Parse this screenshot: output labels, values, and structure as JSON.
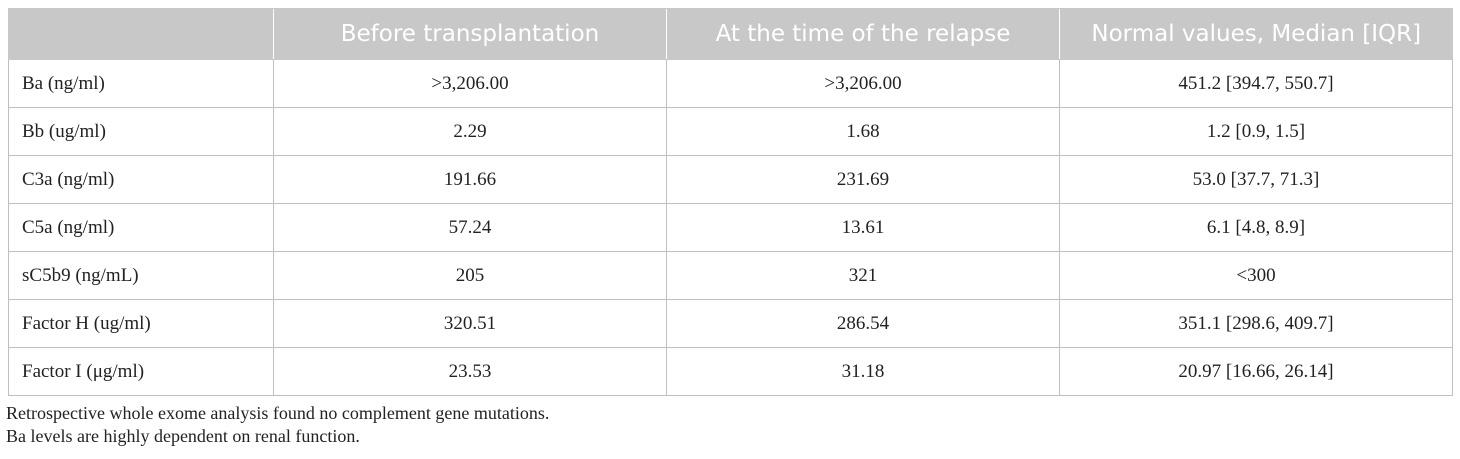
{
  "table": {
    "headers": [
      "",
      "Before transplantation",
      "At the time of the relapse",
      "Normal values, Median [IQR]"
    ],
    "rows": [
      [
        "Ba (ng/ml)",
        ">3,206.00",
        ">3,206.00",
        "451.2 [394.7, 550.7]"
      ],
      [
        "Bb (ug/ml)",
        "2.29",
        "1.68",
        "1.2 [0.9, 1.5]"
      ],
      [
        "C3a (ng/ml)",
        "191.66",
        "231.69",
        "53.0 [37.7, 71.3]"
      ],
      [
        "C5a (ng/ml)",
        "57.24",
        "13.61",
        "6.1 [4.8, 8.9]"
      ],
      [
        "sC5b9 (ng/mL)",
        "205",
        "321",
        "<300"
      ],
      [
        "Factor H (ug/ml)",
        "320.51",
        "286.54",
        "351.1 [298.6, 409.7]"
      ],
      [
        "Factor I (μg/ml)",
        "23.53",
        "31.18",
        "20.97 [16.66, 26.14]"
      ]
    ]
  },
  "footnotes": [
    "Retrospective whole exome analysis found no complement gene mutations.",
    "Ba levels are highly dependent on renal function."
  ],
  "colors": {
    "header_background": "#c8c8c8",
    "header_text": "#ffffff",
    "grid_lines": "#bfbfbf"
  }
}
